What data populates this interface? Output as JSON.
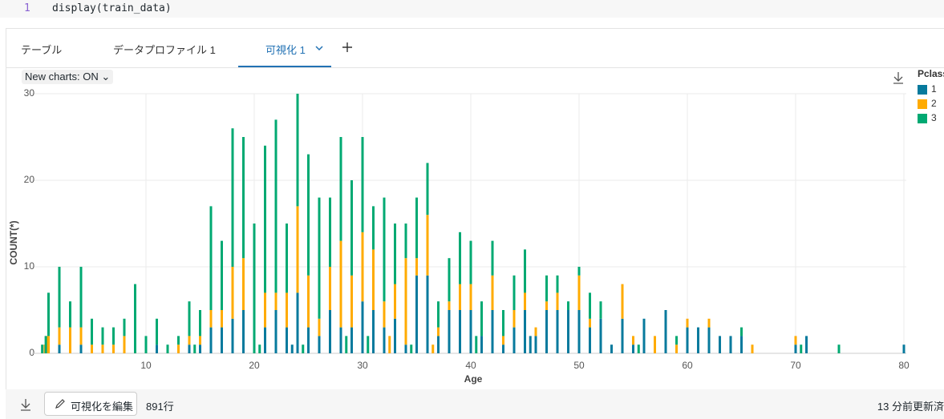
{
  "ui": {
    "line_number": "1",
    "code": "display(train_data)",
    "tabs": [
      "テーブル",
      "データプロファイル 1",
      "可視化 1"
    ],
    "new_charts": "New charts: ON",
    "footer": {
      "edit_button": "可視化を編集",
      "rows": "891行",
      "updated": "13 分前更新済"
    }
  },
  "chart_data": {
    "type": "bar",
    "stacked": true,
    "x_label": "Age",
    "y_label": "COUNT(*)",
    "legend_title": "Pclass",
    "legend": "right",
    "grid": true,
    "x": [
      0.42,
      0.67,
      0.75,
      0.83,
      0.92,
      1,
      2,
      3,
      4,
      5,
      6,
      7,
      8,
      9,
      10,
      11,
      12,
      13,
      14,
      14.5,
      15,
      16,
      17,
      18,
      19,
      20,
      20.5,
      21,
      22,
      23,
      23.5,
      24,
      24.5,
      25,
      26,
      27,
      28,
      28.5,
      29,
      30,
      30.5,
      31,
      32,
      32.5,
      33,
      34,
      34.5,
      35,
      36,
      36.5,
      37,
      38,
      39,
      40,
      40.5,
      41,
      42,
      43,
      44,
      45,
      45.5,
      46,
      47,
      48,
      49,
      50,
      51,
      52,
      53,
      54,
      55,
      55.5,
      56,
      57,
      58,
      59,
      60,
      61,
      62,
      63,
      64,
      65,
      66,
      70,
      70.5,
      71,
      74,
      80
    ],
    "series": [
      {
        "name": "1",
        "color": "#077a9d",
        "values": [
          0,
          0,
          0,
          0,
          1,
          0,
          1,
          0,
          1,
          0,
          0,
          0,
          0,
          0,
          0,
          1,
          0,
          0,
          1,
          0,
          1,
          3,
          3,
          4,
          5,
          0,
          0,
          3,
          5,
          3,
          1,
          7,
          0,
          3,
          2,
          5,
          3,
          0,
          3,
          6,
          0,
          5,
          3,
          0,
          4,
          1,
          0,
          9,
          9,
          0,
          2,
          5,
          5,
          5,
          0,
          2,
          5,
          1,
          3,
          5,
          2,
          2,
          5,
          5,
          5,
          5,
          3,
          4,
          1,
          4,
          1,
          0,
          4,
          0,
          5,
          0,
          3,
          3,
          3,
          2,
          2,
          2,
          0,
          1,
          0,
          2,
          0,
          1
        ]
      },
      {
        "name": "2",
        "color": "#ffab00",
        "values": [
          0,
          1,
          0,
          2,
          0,
          2,
          2,
          3,
          2,
          1,
          1,
          1,
          2,
          0,
          0,
          0,
          0,
          1,
          1,
          0,
          1,
          2,
          2,
          6,
          6,
          0,
          0,
          4,
          2,
          4,
          0,
          10,
          0,
          6,
          2,
          5,
          10,
          0,
          6,
          8,
          0,
          7,
          3,
          2,
          4,
          10,
          0,
          2,
          7,
          1,
          1,
          1,
          3,
          3,
          0,
          0,
          4,
          1,
          2,
          2,
          0,
          1,
          1,
          2,
          0,
          4,
          1,
          0,
          0,
          4,
          1,
          0,
          0,
          2,
          0,
          1,
          1,
          0,
          1,
          0,
          0,
          0,
          1,
          1,
          0,
          0,
          0,
          0
        ]
      },
      {
        "name": "3",
        "color": "#00a972",
        "values": [
          1,
          0,
          2,
          0,
          0,
          5,
          7,
          3,
          7,
          3,
          2,
          2,
          2,
          8,
          2,
          3,
          1,
          1,
          4,
          1,
          3,
          12,
          8,
          16,
          14,
          15,
          1,
          17,
          20,
          8,
          0,
          13,
          1,
          14,
          14,
          8,
          12,
          2,
          11,
          11,
          2,
          5,
          12,
          0,
          7,
          4,
          1,
          7,
          6,
          0,
          3,
          5,
          6,
          5,
          2,
          4,
          4,
          3,
          4,
          5,
          0,
          0,
          3,
          2,
          1,
          1,
          3,
          2,
          0,
          0,
          0,
          1,
          0,
          0,
          0,
          1,
          0,
          0,
          0,
          0,
          0,
          1,
          0,
          0,
          1,
          0,
          1,
          0
        ]
      }
    ],
    "xlim": [
      0,
      80
    ],
    "xticks": [
      10,
      20,
      30,
      40,
      50,
      60,
      70,
      80
    ],
    "ylim": [
      0,
      30
    ],
    "yticks": [
      0,
      10,
      20,
      30
    ]
  }
}
